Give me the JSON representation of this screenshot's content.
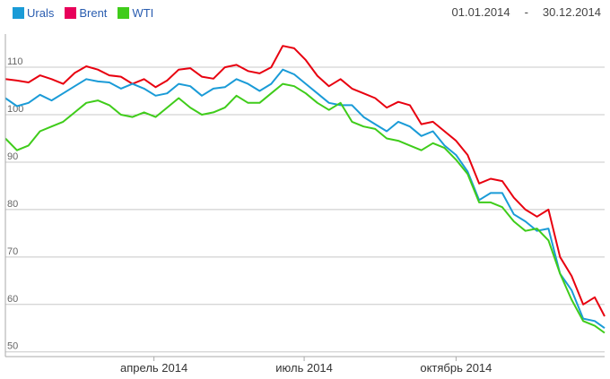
{
  "legend": {
    "urals": "Urals",
    "brent": "Brent",
    "wti": "WTI"
  },
  "date_range": {
    "start": "01.01.2014",
    "separator": "-",
    "end": "30.12.2014"
  },
  "colors": {
    "urals": "#1a9bd7",
    "brent": "#e8000f",
    "wti": "#3fcc1a",
    "grid": "#c8c8c8"
  },
  "chart_data": {
    "type": "line",
    "xlabel": "",
    "ylabel": "",
    "y_ticks": [
      50,
      60,
      70,
      80,
      90,
      100,
      110
    ],
    "ylim": [
      49,
      117
    ],
    "xlim": [
      "2014-01-01",
      "2014-12-30"
    ],
    "x_tick_labels": [
      {
        "date": "2014-04-01",
        "label": "апрель 2014"
      },
      {
        "date": "2014-07-01",
        "label": "июль 2014"
      },
      {
        "date": "2014-10-01",
        "label": "октябрь 2014"
      }
    ],
    "grid": true,
    "legend_position": "top-left",
    "series": [
      {
        "name": "Brent",
        "key": "brent",
        "points": [
          [
            "2014-01-01",
            107.5
          ],
          [
            "2014-01-08",
            107.2
          ],
          [
            "2014-01-15",
            106.8
          ],
          [
            "2014-01-22",
            108.3
          ],
          [
            "2014-01-29",
            107.5
          ],
          [
            "2014-02-05",
            106.5
          ],
          [
            "2014-02-12",
            108.8
          ],
          [
            "2014-02-19",
            110.2
          ],
          [
            "2014-02-26",
            109.5
          ],
          [
            "2014-03-05",
            108.3
          ],
          [
            "2014-03-12",
            108.0
          ],
          [
            "2014-03-19",
            106.5
          ],
          [
            "2014-03-26",
            107.5
          ],
          [
            "2014-04-02",
            105.8
          ],
          [
            "2014-04-09",
            107.2
          ],
          [
            "2014-04-16",
            109.5
          ],
          [
            "2014-04-23",
            109.8
          ],
          [
            "2014-04-30",
            108.0
          ],
          [
            "2014-05-07",
            107.6
          ],
          [
            "2014-05-14",
            110.0
          ],
          [
            "2014-05-21",
            110.5
          ],
          [
            "2014-05-28",
            109.2
          ],
          [
            "2014-06-04",
            108.7
          ],
          [
            "2014-06-11",
            110.0
          ],
          [
            "2014-06-18",
            114.5
          ],
          [
            "2014-06-25",
            114.0
          ],
          [
            "2014-07-02",
            111.5
          ],
          [
            "2014-07-09",
            108.2
          ],
          [
            "2014-07-16",
            106.0
          ],
          [
            "2014-07-23",
            107.5
          ],
          [
            "2014-07-30",
            105.5
          ],
          [
            "2014-08-06",
            104.5
          ],
          [
            "2014-08-13",
            103.5
          ],
          [
            "2014-08-20",
            101.5
          ],
          [
            "2014-08-27",
            102.7
          ],
          [
            "2014-09-03",
            102.0
          ],
          [
            "2014-09-10",
            98.0
          ],
          [
            "2014-09-17",
            98.5
          ],
          [
            "2014-09-24",
            96.5
          ],
          [
            "2014-10-01",
            94.5
          ],
          [
            "2014-10-08",
            91.5
          ],
          [
            "2014-10-15",
            85.5
          ],
          [
            "2014-10-22",
            86.5
          ],
          [
            "2014-10-29",
            86.0
          ],
          [
            "2014-11-05",
            82.5
          ],
          [
            "2014-11-12",
            80.0
          ],
          [
            "2014-11-19",
            78.5
          ],
          [
            "2014-11-26",
            80.0
          ],
          [
            "2014-12-03",
            70.0
          ],
          [
            "2014-12-10",
            66.0
          ],
          [
            "2014-12-17",
            60.0
          ],
          [
            "2014-12-24",
            61.5
          ],
          [
            "2014-12-30",
            57.5
          ]
        ]
      },
      {
        "name": "Urals",
        "key": "urals",
        "points": [
          [
            "2014-01-01",
            103.5
          ],
          [
            "2014-01-08",
            101.8
          ],
          [
            "2014-01-15",
            102.5
          ],
          [
            "2014-01-22",
            104.2
          ],
          [
            "2014-01-29",
            103.0
          ],
          [
            "2014-02-05",
            104.5
          ],
          [
            "2014-02-12",
            106.0
          ],
          [
            "2014-02-19",
            107.5
          ],
          [
            "2014-02-26",
            107.0
          ],
          [
            "2014-03-05",
            106.8
          ],
          [
            "2014-03-12",
            105.5
          ],
          [
            "2014-03-19",
            106.5
          ],
          [
            "2014-03-26",
            105.5
          ],
          [
            "2014-04-02",
            104.0
          ],
          [
            "2014-04-09",
            104.5
          ],
          [
            "2014-04-16",
            106.5
          ],
          [
            "2014-04-23",
            106.0
          ],
          [
            "2014-04-30",
            104.0
          ],
          [
            "2014-05-07",
            105.5
          ],
          [
            "2014-05-14",
            105.8
          ],
          [
            "2014-05-21",
            107.5
          ],
          [
            "2014-05-28",
            106.5
          ],
          [
            "2014-06-04",
            105.0
          ],
          [
            "2014-06-11",
            106.5
          ],
          [
            "2014-06-18",
            109.5
          ],
          [
            "2014-06-25",
            108.5
          ],
          [
            "2014-07-02",
            106.5
          ],
          [
            "2014-07-09",
            104.5
          ],
          [
            "2014-07-16",
            102.5
          ],
          [
            "2014-07-23",
            102.0
          ],
          [
            "2014-07-30",
            102.0
          ],
          [
            "2014-08-06",
            99.5
          ],
          [
            "2014-08-13",
            98.0
          ],
          [
            "2014-08-20",
            96.5
          ],
          [
            "2014-08-27",
            98.5
          ],
          [
            "2014-09-03",
            97.5
          ],
          [
            "2014-09-10",
            95.5
          ],
          [
            "2014-09-17",
            96.5
          ],
          [
            "2014-09-24",
            93.5
          ],
          [
            "2014-10-01",
            91.5
          ],
          [
            "2014-10-08",
            88.0
          ],
          [
            "2014-10-15",
            82.0
          ],
          [
            "2014-10-22",
            83.5
          ],
          [
            "2014-10-29",
            83.5
          ],
          [
            "2014-11-05",
            79.0
          ],
          [
            "2014-11-12",
            77.5
          ],
          [
            "2014-11-19",
            75.5
          ],
          [
            "2014-11-26",
            76.0
          ],
          [
            "2014-12-03",
            66.5
          ],
          [
            "2014-12-10",
            63.0
          ],
          [
            "2014-12-17",
            57.0
          ],
          [
            "2014-12-24",
            56.5
          ],
          [
            "2014-12-30",
            55.0
          ]
        ]
      },
      {
        "name": "WTI",
        "key": "wti",
        "points": [
          [
            "2014-01-01",
            95.0
          ],
          [
            "2014-01-08",
            92.5
          ],
          [
            "2014-01-15",
            93.5
          ],
          [
            "2014-01-22",
            96.5
          ],
          [
            "2014-01-29",
            97.5
          ],
          [
            "2014-02-05",
            98.5
          ],
          [
            "2014-02-12",
            100.5
          ],
          [
            "2014-02-19",
            102.5
          ],
          [
            "2014-02-26",
            103.0
          ],
          [
            "2014-03-05",
            102.0
          ],
          [
            "2014-03-12",
            100.0
          ],
          [
            "2014-03-19",
            99.5
          ],
          [
            "2014-03-26",
            100.5
          ],
          [
            "2014-04-02",
            99.5
          ],
          [
            "2014-04-09",
            101.5
          ],
          [
            "2014-04-16",
            103.5
          ],
          [
            "2014-04-23",
            101.5
          ],
          [
            "2014-04-30",
            100.0
          ],
          [
            "2014-05-07",
            100.5
          ],
          [
            "2014-05-14",
            101.5
          ],
          [
            "2014-05-21",
            104.0
          ],
          [
            "2014-05-28",
            102.5
          ],
          [
            "2014-06-04",
            102.5
          ],
          [
            "2014-06-11",
            104.5
          ],
          [
            "2014-06-18",
            106.5
          ],
          [
            "2014-06-25",
            106.0
          ],
          [
            "2014-07-02",
            104.5
          ],
          [
            "2014-07-09",
            102.5
          ],
          [
            "2014-07-16",
            101.0
          ],
          [
            "2014-07-23",
            102.5
          ],
          [
            "2014-07-30",
            98.5
          ],
          [
            "2014-08-06",
            97.5
          ],
          [
            "2014-08-13",
            97.0
          ],
          [
            "2014-08-20",
            95.0
          ],
          [
            "2014-08-27",
            94.5
          ],
          [
            "2014-09-03",
            93.5
          ],
          [
            "2014-09-10",
            92.5
          ],
          [
            "2014-09-17",
            94.0
          ],
          [
            "2014-09-24",
            93.0
          ],
          [
            "2014-10-01",
            90.5
          ],
          [
            "2014-10-08",
            87.5
          ],
          [
            "2014-10-15",
            81.5
          ],
          [
            "2014-10-22",
            81.5
          ],
          [
            "2014-10-29",
            80.5
          ],
          [
            "2014-11-05",
            77.5
          ],
          [
            "2014-11-12",
            75.5
          ],
          [
            "2014-11-19",
            76.0
          ],
          [
            "2014-11-26",
            73.5
          ],
          [
            "2014-12-03",
            66.5
          ],
          [
            "2014-12-10",
            61.0
          ],
          [
            "2014-12-17",
            56.5
          ],
          [
            "2014-12-24",
            55.5
          ],
          [
            "2014-12-30",
            54.0
          ]
        ]
      }
    ]
  }
}
